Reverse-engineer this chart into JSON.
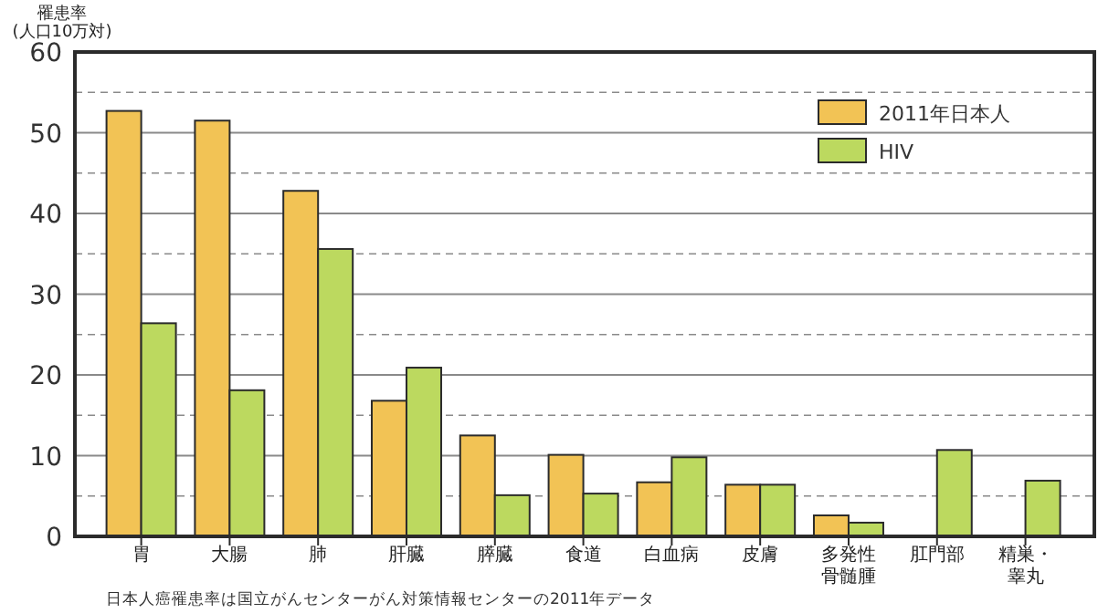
{
  "chart_data": {
    "type": "bar",
    "ylabel": "罹患率\n(人口10万対)",
    "categories": [
      "胃",
      "大腸",
      "肺",
      "肝臓",
      "膵臓",
      "食道",
      "白血病",
      "皮膚",
      "多発性骨髄腫",
      "肛門部",
      "精巣・睾丸"
    ],
    "series": [
      {
        "name": "2011年日本人",
        "color": "#f2c355",
        "values": [
          52.7,
          51.5,
          42.8,
          16.8,
          12.5,
          10.1,
          6.7,
          6.4,
          2.6,
          null,
          null
        ]
      },
      {
        "name": "HIV",
        "color": "#bcd95f",
        "values": [
          26.4,
          18.1,
          35.6,
          20.9,
          5.1,
          5.3,
          9.8,
          6.4,
          1.7,
          10.7,
          6.9
        ]
      }
    ],
    "ylim": [
      0,
      60
    ],
    "yticks": [
      0,
      {
        "value": 5,
        "label": null
      },
      10,
      {
        "value": 15,
        "label": null
      },
      20,
      {
        "value": 25,
        "label": null
      },
      30,
      {
        "value": 35,
        "label": null
      },
      40,
      {
        "value": 45,
        "label": null
      },
      50,
      {
        "value": 55,
        "label": null
      },
      60
    ],
    "grid": "y",
    "legend": "top right",
    "annotations": [
      "日本人癌罹患率は国立がんセンターがん対策情報センターの2011年データ"
    ]
  }
}
